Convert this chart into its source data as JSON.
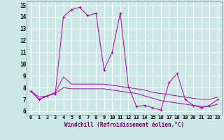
{
  "xlabel": "Windchill (Refroidissement éolien,°C)",
  "bg_color": "#cce8e4",
  "grid_color": "#ffffff",
  "line_color": "#aa00aa",
  "hours": [
    0,
    1,
    2,
    3,
    4,
    5,
    6,
    7,
    8,
    9,
    10,
    11,
    12,
    13,
    14,
    15,
    16,
    17,
    18,
    19,
    20,
    21,
    22,
    23
  ],
  "xtick_labels": [
    "0",
    "1",
    "2",
    "3",
    "4",
    "5",
    "6",
    "7",
    "8",
    "9",
    "10",
    "11",
    "12",
    "13",
    "14",
    "15",
    "16",
    "17",
    "18",
    "19",
    "20",
    "21",
    "22",
    "23"
  ],
  "series1": [
    7.7,
    7.0,
    7.3,
    7.5,
    14.0,
    14.6,
    14.8,
    14.1,
    14.3,
    9.5,
    11.0,
    14.3,
    8.1,
    6.4,
    6.5,
    6.3,
    6.1,
    8.4,
    9.2,
    7.0,
    6.5,
    6.3,
    6.5,
    7.0
  ],
  "series2": [
    7.7,
    7.2,
    7.3,
    7.6,
    8.9,
    8.3,
    8.3,
    8.3,
    8.3,
    8.3,
    8.2,
    8.1,
    8.0,
    7.9,
    7.8,
    7.6,
    7.5,
    7.4,
    7.3,
    7.2,
    7.1,
    7.0,
    7.0,
    7.2
  ],
  "series3": [
    7.7,
    7.0,
    7.3,
    7.5,
    8.0,
    7.9,
    7.9,
    7.9,
    7.9,
    7.9,
    7.8,
    7.7,
    7.6,
    7.5,
    7.3,
    7.1,
    6.9,
    6.8,
    6.7,
    6.6,
    6.5,
    6.4,
    6.4,
    6.6
  ],
  "ylim_min": 5.7,
  "ylim_max": 15.3,
  "yticks": [
    6,
    7,
    8,
    9,
    10,
    11,
    12,
    13,
    14,
    15
  ]
}
